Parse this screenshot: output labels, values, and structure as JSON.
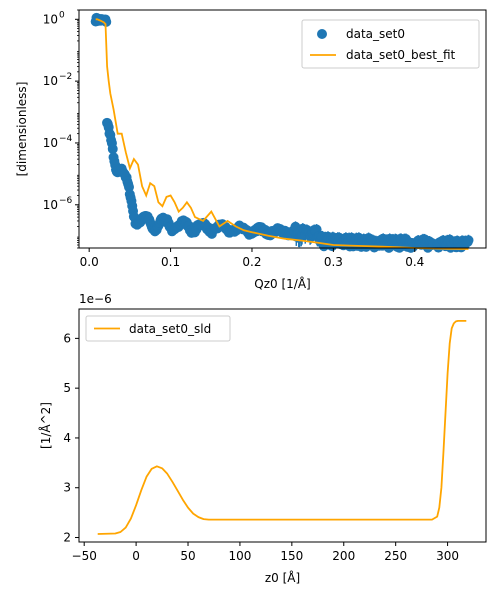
{
  "colors": {
    "data": "#1f77b4",
    "fit": "#ffa500",
    "sld": "#ffa500",
    "axis": "#000000"
  },
  "chart_data": [
    {
      "type": "scatter",
      "title": "",
      "xlabel": "Qz0 [1/Å]",
      "ylabel": "[dimensionless]",
      "xlim": [
        -0.0125,
        0.4875
      ],
      "ylim": [
        4e-08,
        2
      ],
      "yscale": "log",
      "x_ticks": [
        0.0,
        0.1,
        0.2,
        0.3,
        0.4
      ],
      "x_tick_labels": [
        "0.0",
        "0.1",
        "0.2",
        "0.3",
        "0.4"
      ],
      "y_ticks": [
        1e-06,
        0.0001,
        0.01,
        1
      ],
      "y_tick_labels": [
        {
          "base": "10",
          "exp": "−6"
        },
        {
          "base": "10",
          "exp": "−4"
        },
        {
          "base": "10",
          "exp": "−2"
        },
        {
          "base": "10",
          "exp": "0"
        }
      ],
      "legend": {
        "placement": "top-right",
        "entries": [
          {
            "label": "data_set0",
            "marker": "circle"
          },
          {
            "label": "data_set0_best_fit",
            "marker": "line"
          }
        ]
      },
      "series": [
        {
          "name": "data_set0",
          "kind": "points_with_errorbars",
          "x_range": [
            0.008,
            0.466
          ],
          "count": 460
        },
        {
          "name": "data_set0_best_fit",
          "kind": "line",
          "x": [
            0.008,
            0.01,
            0.012,
            0.014,
            0.016,
            0.018,
            0.02,
            0.022,
            0.024,
            0.026,
            0.03,
            0.035,
            0.04,
            0.045,
            0.05,
            0.055,
            0.06,
            0.065,
            0.07,
            0.075,
            0.08,
            0.085,
            0.09,
            0.095,
            0.1,
            0.105,
            0.11,
            0.115,
            0.12,
            0.125,
            0.13,
            0.14,
            0.15,
            0.16,
            0.17,
            0.18,
            0.19,
            0.2,
            0.22,
            0.24,
            0.26,
            0.28,
            0.3,
            0.32,
            0.34,
            0.36,
            0.38,
            0.4,
            0.42,
            0.44,
            0.466
          ],
          "y": [
            1.0,
            1.0,
            0.95,
            0.9,
            0.85,
            0.8,
            0.7,
            0.03,
            0.01,
            0.004,
            0.0012,
            0.0002,
            0.0002,
            5e-05,
            1.5e-05,
            3e-05,
            2e-05,
            4e-06,
            2e-06,
            5e-06,
            4e-06,
            1.2e-06,
            9e-07,
            1.8e-06,
            2e-06,
            1.2e-06,
            6e-07,
            8e-07,
            1.2e-06,
            8e-07,
            4e-07,
            3e-07,
            6e-07,
            2e-07,
            3e-07,
            2e-07,
            1.5e-07,
            1.3e-07,
            1e-07,
            8e-08,
            7e-08,
            6e-08,
            5e-08,
            4.8e-08,
            4.6e-08,
            4.4e-08,
            4.2e-08,
            4e-08,
            3.9e-08,
            3.8e-08,
            3.7e-08
          ]
        }
      ]
    },
    {
      "type": "line",
      "title": "",
      "xlabel": "z0 [Å]",
      "ylabel": "[1/Å^2]",
      "y_offset_label": "1e−6",
      "xlim": [
        -55,
        337
      ],
      "ylim": [
        1.91,
        6.59
      ],
      "x_ticks": [
        -50,
        0,
        50,
        100,
        150,
        200,
        250,
        300
      ],
      "x_tick_labels": [
        "−50",
        "0",
        "50",
        "100",
        "150",
        "200",
        "250",
        "300"
      ],
      "y_ticks": [
        2,
        3,
        4,
        5,
        6
      ],
      "y_tick_labels": [
        "2",
        "3",
        "4",
        "5",
        "6"
      ],
      "legend": {
        "placement": "top-left",
        "entries": [
          {
            "label": "data_set0_sld",
            "marker": "line"
          }
        ]
      },
      "series": [
        {
          "name": "data_set0_sld",
          "x": [
            -37,
            -20,
            -15,
            -10,
            -5,
            0,
            5,
            10,
            15,
            20,
            25,
            30,
            35,
            40,
            45,
            50,
            55,
            60,
            65,
            70,
            80,
            100,
            150,
            200,
            250,
            285,
            290,
            292,
            294,
            296,
            298,
            300,
            302,
            304,
            306,
            308,
            310,
            318
          ],
          "y": [
            2.07,
            2.08,
            2.11,
            2.2,
            2.38,
            2.65,
            2.95,
            3.22,
            3.38,
            3.43,
            3.39,
            3.28,
            3.12,
            2.94,
            2.76,
            2.6,
            2.48,
            2.41,
            2.37,
            2.36,
            2.36,
            2.36,
            2.36,
            2.36,
            2.36,
            2.36,
            2.42,
            2.6,
            3.0,
            3.7,
            4.5,
            5.3,
            5.9,
            6.2,
            6.3,
            6.34,
            6.35,
            6.35
          ]
        }
      ]
    }
  ]
}
